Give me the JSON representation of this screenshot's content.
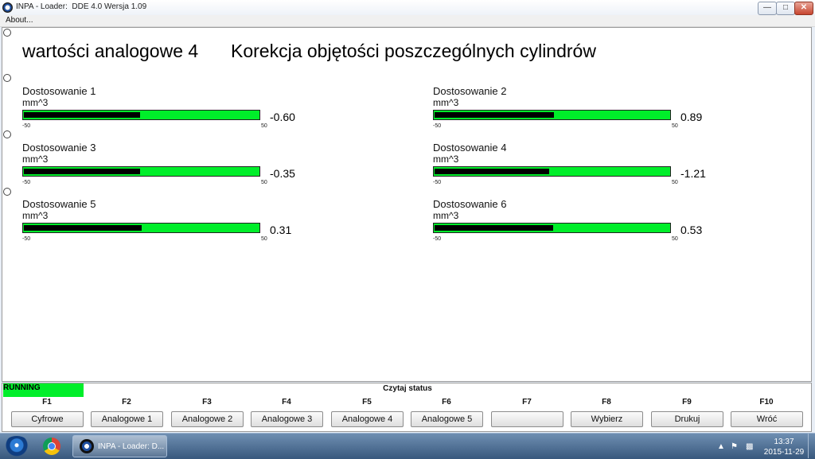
{
  "window": {
    "title": "INPA - Loader:  DDE 4.0 Wersja 1.09"
  },
  "menu": {
    "about": "About..."
  },
  "screen": {
    "title_left": "wartości analogowe 4",
    "title_right": "Korekcja objętości poszczególnych cylindrów"
  },
  "gauges": [
    {
      "label": "Dostosowanie 1",
      "unit": "mm^3",
      "min": "-50",
      "max": "50",
      "value": "-0.60",
      "fill_percent": 49.4
    },
    {
      "label": "Dostosowanie 2",
      "unit": "mm^3",
      "min": "-50",
      "max": "50",
      "value": "0.89",
      "fill_percent": 50.9
    },
    {
      "label": "Dostosowanie 3",
      "unit": "mm^3",
      "min": "-50",
      "max": "50",
      "value": "-0.35",
      "fill_percent": 49.65
    },
    {
      "label": "Dostosowanie 4",
      "unit": "mm^3",
      "min": "-50",
      "max": "50",
      "value": "-1.21",
      "fill_percent": 48.79
    },
    {
      "label": "Dostosowanie 5",
      "unit": "mm^3",
      "min": "-50",
      "max": "50",
      "value": "0.31",
      "fill_percent": 50.31
    },
    {
      "label": "Dostosowanie 6",
      "unit": "mm^3",
      "min": "-50",
      "max": "50",
      "value": "0.53",
      "fill_percent": 50.53
    }
  ],
  "status": {
    "running": "RUNNING",
    "title": "Czytaj status"
  },
  "fkeys": [
    {
      "key": "F1",
      "label": "Cyfrowe"
    },
    {
      "key": "F2",
      "label": "Analogowe 1"
    },
    {
      "key": "F3",
      "label": "Analogowe 2"
    },
    {
      "key": "F4",
      "label": "Analogowe 3"
    },
    {
      "key": "F5",
      "label": "Analogowe 4"
    },
    {
      "key": "F6",
      "label": "Analogowe 5"
    },
    {
      "key": "F7",
      "label": ""
    },
    {
      "key": "F8",
      "label": "Wybierz"
    },
    {
      "key": "F9",
      "label": "Drukuj"
    },
    {
      "key": "F10",
      "label": "Wróć"
    }
  ],
  "taskbar": {
    "app_label": "INPA - Loader:  D...",
    "time": "13:37",
    "date": "2015-11-29"
  },
  "colors": {
    "gauge_green": "#00ee2a",
    "running_green": "#00ee2a",
    "gauge_fill": "#000000"
  }
}
